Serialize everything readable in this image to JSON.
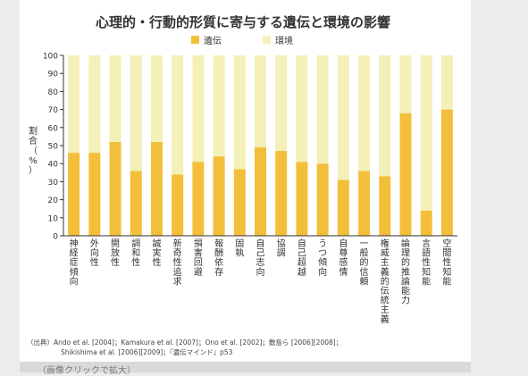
{
  "chart_data": {
    "type": "bar",
    "stacked": true,
    "title": "心理的・行動的形質に寄与する遺伝と環境の影響",
    "ylabel": "割合（%）",
    "ylim": [
      0,
      100
    ],
    "yticks": [
      0,
      10,
      20,
      30,
      40,
      50,
      60,
      70,
      80,
      90,
      100
    ],
    "grid": false,
    "legend_position": "top",
    "categories": [
      "神経症傾向",
      "外向性",
      "開放性",
      "調和性",
      "誠実性",
      "新奇性追求",
      "損害回避",
      "報酬依存",
      "固執",
      "自己志向",
      "協調",
      "自己超越",
      "うつ傾向",
      "自尊感情",
      "一般的信頼",
      "権威主義的伝統主義",
      "論理的推論能力",
      "言語性知能",
      "空間性知能"
    ],
    "series": [
      {
        "name": "遺伝",
        "color": "#f3bf3a",
        "values": [
          46,
          46,
          52,
          36,
          52,
          34,
          41,
          44,
          37,
          49,
          47,
          41,
          40,
          31,
          36,
          33,
          68,
          14,
          70
        ]
      },
      {
        "name": "環境",
        "color": "#f3f0b8",
        "values": [
          54,
          54,
          48,
          64,
          48,
          66,
          59,
          56,
          63,
          51,
          53,
          59,
          60,
          69,
          64,
          67,
          32,
          86,
          30
        ]
      }
    ]
  },
  "source": {
    "line1": "（出典）Ando et al. [2004]；Kamakura et al. [2007]；Ono et al. [2002]；敷島ら [2006][2008]；",
    "line2": "Shikishima et al. [2006][2009]；『遺伝マインド』p53"
  },
  "footer": {
    "label": "（画像クリックで拡大）"
  }
}
